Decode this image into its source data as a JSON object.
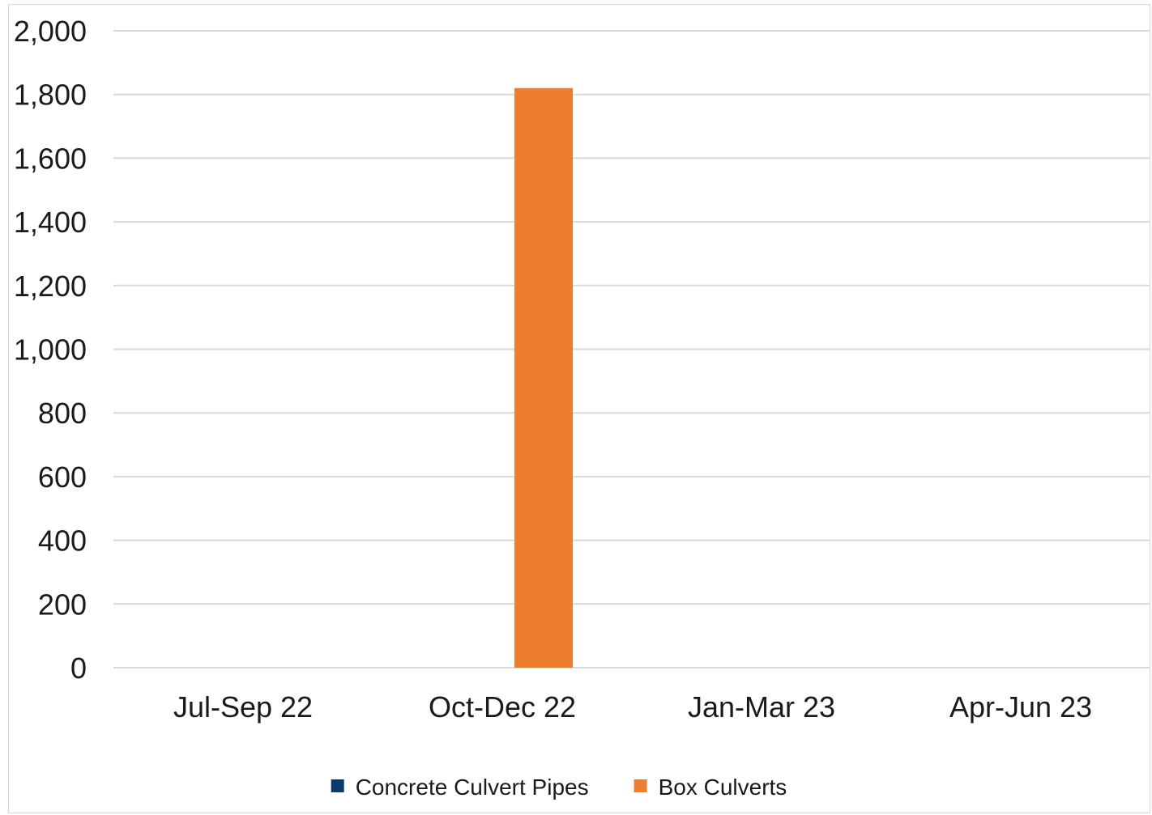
{
  "chart_data": {
    "type": "bar",
    "title": "",
    "xlabel": "",
    "ylabel": "",
    "categories": [
      "Jul-Sep 22",
      "Oct-Dec 22",
      "Jan-Mar 23",
      "Apr-Jun 23"
    ],
    "series": [
      {
        "name": "Concrete Culvert Pipes",
        "color": "#0b3a6b",
        "values": [
          0,
          0,
          0,
          0
        ]
      },
      {
        "name": "Box Culverts",
        "color": "#ed7d31",
        "values": [
          0,
          1820,
          0,
          0
        ]
      }
    ],
    "ylim": [
      0,
      2000
    ],
    "yticks": [
      0,
      200,
      400,
      600,
      800,
      1000,
      1200,
      1400,
      1600,
      1800,
      2000
    ],
    "ytick_labels": [
      "0",
      "200",
      "400",
      "600",
      "800",
      "1,000",
      "1,200",
      "1,400",
      "1,600",
      "1,800",
      "2,000"
    ],
    "grid": true,
    "legend_position": "bottom",
    "gridline_color": "#d9d9d9"
  }
}
